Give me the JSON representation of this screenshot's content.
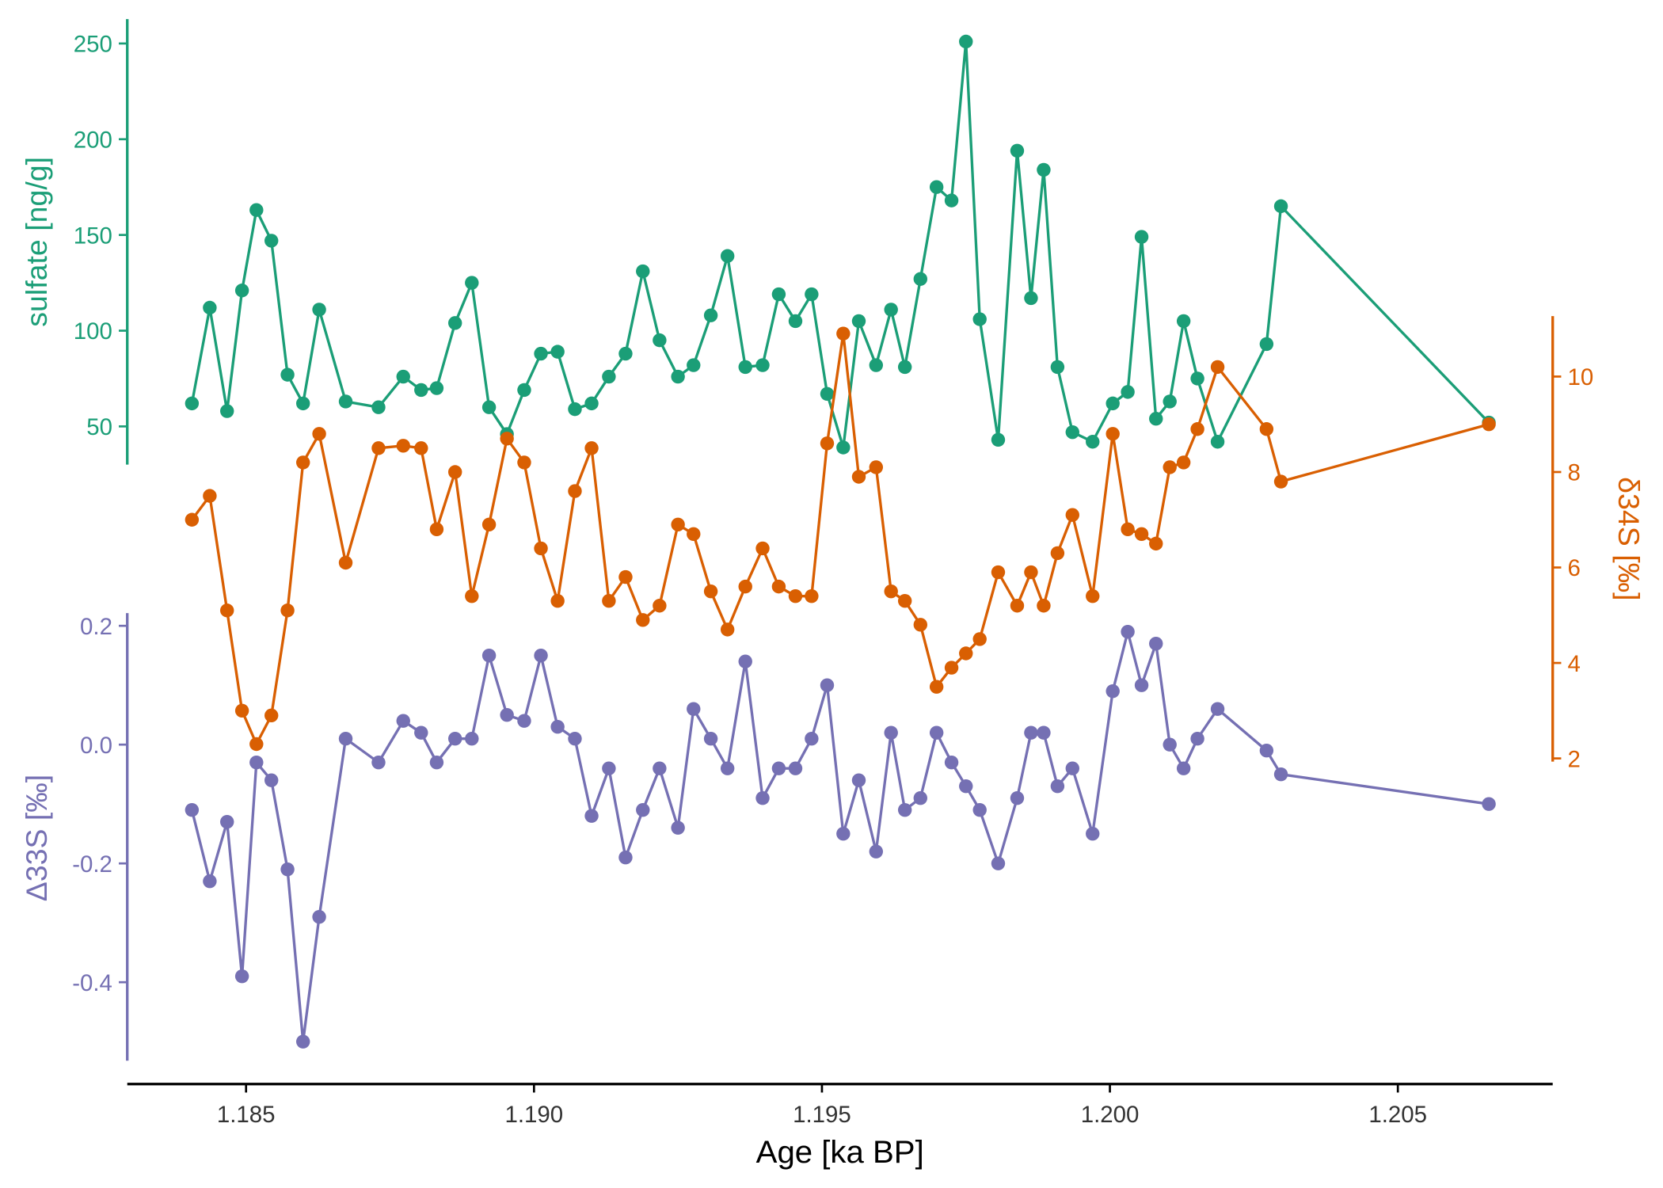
{
  "chart_data": {
    "type": "line",
    "xlabel": "Age [ka BP]",
    "xlim": [
      1.183,
      1.208
    ],
    "xticks": [
      1.185,
      1.19,
      1.195,
      1.2,
      1.205
    ],
    "xtick_labels": [
      "1.185",
      "1.190",
      "1.195",
      "1.200",
      "1.205"
    ],
    "grid": false,
    "x": [
      1.18406,
      1.18437,
      1.18467,
      1.18493,
      1.18518,
      1.18544,
      1.18572,
      1.18599,
      1.18627,
      1.18673,
      1.1873,
      1.18773,
      1.18804,
      1.18831,
      1.18863,
      1.18892,
      1.18922,
      1.18953,
      1.18983,
      1.19012,
      1.19041,
      1.19071,
      1.191,
      1.1913,
      1.19159,
      1.19189,
      1.19218,
      1.1925,
      1.19277,
      1.19307,
      1.19336,
      1.19367,
      1.19397,
      1.19425,
      1.19454,
      1.19482,
      1.19509,
      1.19537,
      1.19564,
      1.19594,
      1.1962,
      1.19644,
      1.19671,
      1.19699,
      1.19725,
      1.1975,
      1.19774,
      1.19806,
      1.19839,
      1.19863,
      1.19885,
      1.19909,
      1.19935,
      1.1997,
      1.20005,
      1.20031,
      1.20055,
      1.2008,
      1.20104,
      1.20128,
      1.20152,
      1.20187,
      1.20272,
      1.20297,
      1.20658
    ],
    "series": [
      {
        "name": "sulfate [ng/g]",
        "color": "#1b9e77",
        "axis": "left-top",
        "ylim": [
          28,
          255
        ],
        "yticks": [
          50,
          100,
          150,
          200,
          250
        ],
        "values": [
          62,
          112,
          58,
          121,
          163,
          147,
          77,
          62,
          111,
          63,
          60,
          76,
          69,
          70,
          104,
          125,
          60,
          46,
          69,
          88,
          89,
          59,
          62,
          76,
          88,
          131,
          95,
          76,
          82,
          108,
          139,
          81,
          82,
          119,
          105,
          119,
          67,
          39,
          105,
          82,
          111,
          81,
          127,
          175,
          168,
          251,
          106,
          43,
          194,
          117,
          184,
          81,
          47,
          42,
          62,
          68,
          149,
          54,
          63,
          105,
          75,
          42,
          93,
          165,
          52
        ]
      },
      {
        "name": "δ34S [‰]",
        "color": "#d95f02",
        "axis": "right",
        "ylim": [
          1.8,
          11.3
        ],
        "yticks": [
          2,
          4,
          6,
          8,
          10
        ],
        "values": [
          7.0,
          7.5,
          5.1,
          3.0,
          2.3,
          2.9,
          5.1,
          8.2,
          8.8,
          6.1,
          8.5,
          8.55,
          8.5,
          6.8,
          8.0,
          5.4,
          6.9,
          8.7,
          8.2,
          6.4,
          5.3,
          7.6,
          8.5,
          5.3,
          5.8,
          4.9,
          5.2,
          6.9,
          6.7,
          5.5,
          4.7,
          5.6,
          6.4,
          5.6,
          5.4,
          5.4,
          8.6,
          10.9,
          7.9,
          8.1,
          5.5,
          5.3,
          4.8,
          3.5,
          3.9,
          4.2,
          4.5,
          5.9,
          5.2,
          5.9,
          5.2,
          6.3,
          7.1,
          5.4,
          8.8,
          6.8,
          6.7,
          6.5,
          8.1,
          8.2,
          8.9,
          10.2,
          8.9,
          7.8,
          9.0
        ]
      },
      {
        "name": "Δ33S [‰]",
        "color": "#7570b3",
        "axis": "left-bottom",
        "ylim": [
          -0.53,
          0.22
        ],
        "yticks": [
          -0.4,
          -0.2,
          0.0,
          0.2
        ],
        "values": [
          -0.11,
          -0.23,
          -0.13,
          -0.39,
          -0.03,
          -0.06,
          -0.21,
          -0.5,
          -0.29,
          0.01,
          -0.03,
          0.04,
          0.02,
          -0.03,
          0.01,
          0.01,
          0.15,
          0.05,
          0.04,
          0.15,
          0.03,
          0.01,
          -0.12,
          -0.04,
          -0.19,
          -0.11,
          -0.04,
          -0.14,
          0.06,
          0.01,
          -0.04,
          0.14,
          -0.09,
          -0.04,
          -0.04,
          0.01,
          0.1,
          -0.15,
          -0.06,
          -0.18,
          0.02,
          -0.11,
          -0.09,
          0.02,
          -0.03,
          -0.07,
          -0.11,
          -0.2,
          -0.09,
          0.02,
          0.02,
          -0.07,
          -0.04,
          -0.15,
          0.09,
          0.19,
          0.1,
          0.17,
          0.0,
          -0.04,
          0.01,
          0.06,
          -0.01,
          -0.05,
          -0.1
        ]
      }
    ],
    "ytick_labels": {
      "sulfate": [
        "50",
        "100",
        "150",
        "200",
        "250"
      ],
      "d34s": [
        "2",
        "4",
        "6",
        "8",
        "10"
      ],
      "D33s": [
        "-0.4",
        "-0.2",
        "0.0",
        "0.2"
      ]
    }
  }
}
